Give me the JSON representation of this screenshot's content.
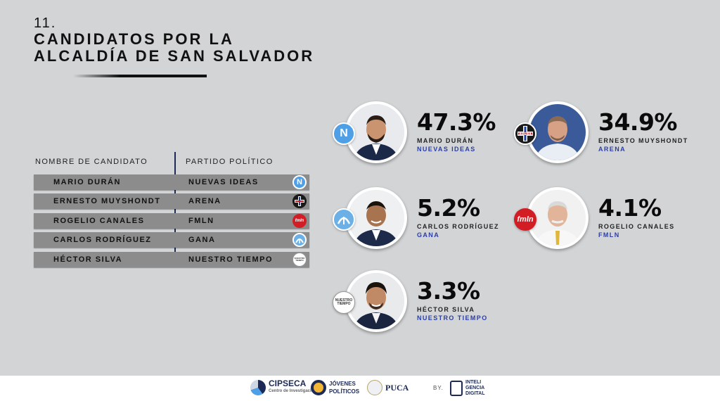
{
  "header": {
    "number": "11.",
    "title": "CANDIDATOS POR LA\nALCALDÍA DE SAN SALVADOR"
  },
  "table": {
    "col_name": "NOMBRE DE CANDIDATO",
    "col_party": "PARTIDO POLÍTICO",
    "rows": [
      {
        "name": "MARIO DURÁN",
        "party": "NUEVAS IDEAS",
        "logo": "nuevas-ideas-logo"
      },
      {
        "name": "ERNESTO MUYSHONDT",
        "party": "ARENA",
        "logo": "arena-logo"
      },
      {
        "name": "ROGELIO CANALES",
        "party": "FMLN",
        "logo": "fmln-logo"
      },
      {
        "name": "CARLOS RODRÍGUEZ",
        "party": "GANA",
        "logo": "gana-logo"
      },
      {
        "name": "HÉCTOR SILVA",
        "party": "NUESTRO TIEMPO",
        "logo": "nuestro-tiempo-logo"
      }
    ]
  },
  "candidates": [
    {
      "percent": "47.3%",
      "name": "MARIO DURÁN",
      "party": "NUEVAS IDEAS"
    },
    {
      "percent": "34.9%",
      "name": "ERNESTO MUYSHONDT",
      "party": "ARENA"
    },
    {
      "percent": "5.2%",
      "name": "CARLOS RODRÍGUEZ",
      "party": "GANA"
    },
    {
      "percent": "4.1%",
      "name": "ROGELIO CANALES",
      "party": "FMLN"
    },
    {
      "percent": "3.3%",
      "name": "HÉCTOR SILVA",
      "party": "NUESTRO TIEMPO"
    }
  ],
  "logos": {
    "nuevas_ideas": "N",
    "arena": "ARENA",
    "fmln": "fmln",
    "nuestro_tiempo": "NUESTRO TIEMPO"
  },
  "footer": {
    "cipseca": "CIPSECA",
    "cipseca_sub": "Centro de Investigaciones",
    "jovenes": "JÓVENES POLÍTICOS",
    "puca": "PUCA",
    "by": "BY.",
    "inteligencia": "INTELI GENCIA DIGITAL"
  },
  "colors": {
    "background": "#d2d4d6",
    "party_blue": "#2b3ea8",
    "row_gray": "#8c8c8c",
    "fmln_red": "#d21d24",
    "nuevas_ideas_blue": "#4e9fe6"
  }
}
